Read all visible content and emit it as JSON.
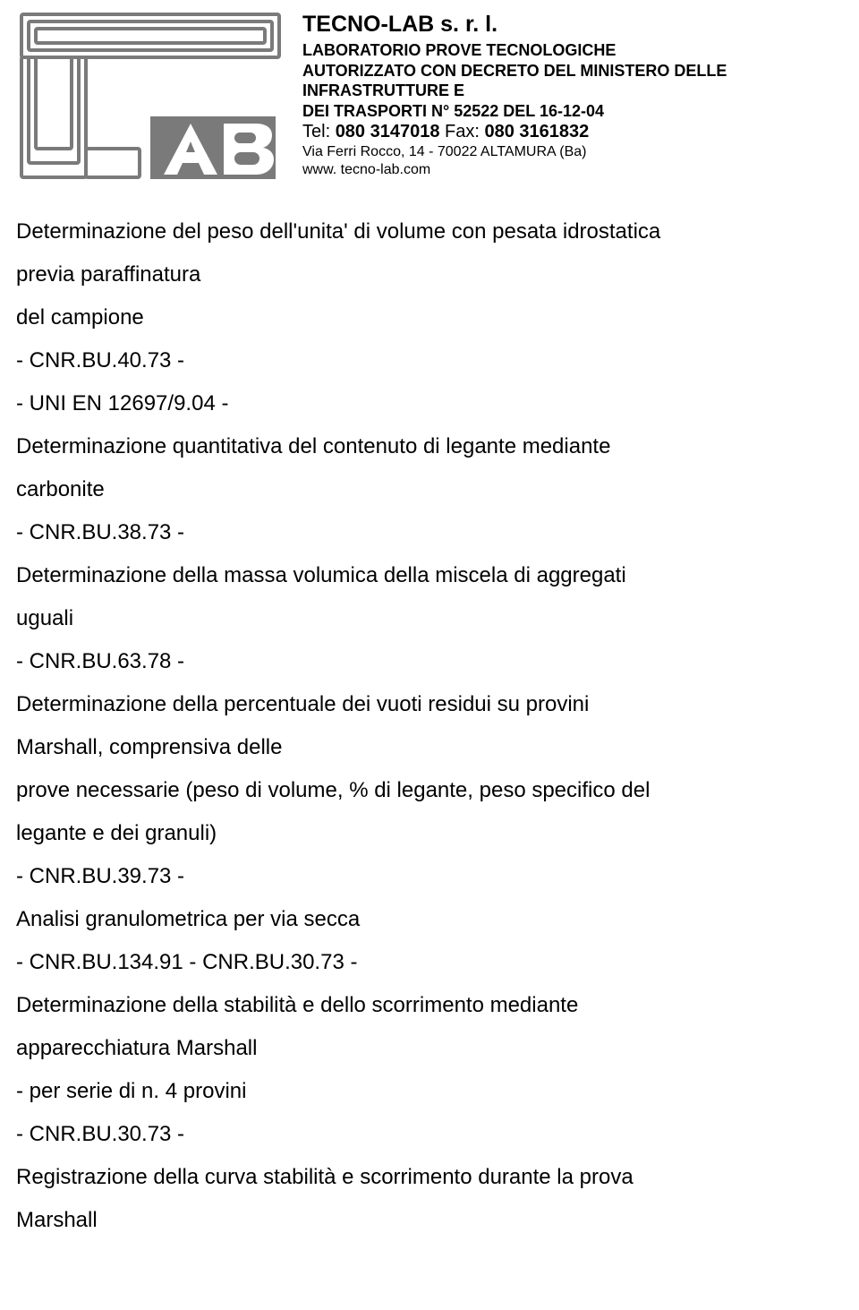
{
  "header": {
    "company_name": "TECNO-LAB s. r. l.",
    "line1": "LABORATORIO PROVE TECNOLOGICHE",
    "line2": "AUTORIZZATO CON DECRETO DEL MINISTERO DELLE",
    "line3": "INFRASTRUTTURE E",
    "line4": "DEI TRASPORTI N° 52522 DEL 16-12-04",
    "tel_label": "Tel: ",
    "tel_value": "080 3147018",
    "fax_label": " Fax: ",
    "fax_value": "080 3161832",
    "address": "Via Ferri Rocco, 14  - 70022 ALTAMURA (Ba)",
    "website": "www. tecno-lab.com"
  },
  "body": {
    "lines": [
      "Determinazione del peso dell'unita' di volume con pesata idrostatica",
      "previa paraffinatura",
      "del campione",
      "- CNR.BU.40.73 -",
      "- UNI EN 12697/9.04 -",
      "Determinazione quantitativa del contenuto di legante mediante",
      "carbonite",
      "- CNR.BU.38.73 -",
      "Determinazione della massa volumica della miscela di aggregati",
      "uguali",
      "- CNR.BU.63.78 -",
      "Determinazione della percentuale dei vuoti residui su provini",
      "Marshall, comprensiva delle",
      "prove necessarie (peso di volume, % di legante, peso specifico del",
      "legante e dei granuli)",
      "- CNR.BU.39.73 -",
      "Analisi granulometrica per via secca",
      "- CNR.BU.134.91 - CNR.BU.30.73 -",
      "Determinazione della stabilità e dello scorrimento mediante",
      "apparecchiatura Marshall",
      "- per serie di n. 4 provini",
      "- CNR.BU.30.73 -",
      "Registrazione della curva stabilità e scorrimento durante la prova",
      "Marshall"
    ]
  },
  "logo": {
    "stroke_color": "#7a7a7a",
    "fill_color": "#7a7a7a",
    "bg_color": "#ffffff"
  }
}
